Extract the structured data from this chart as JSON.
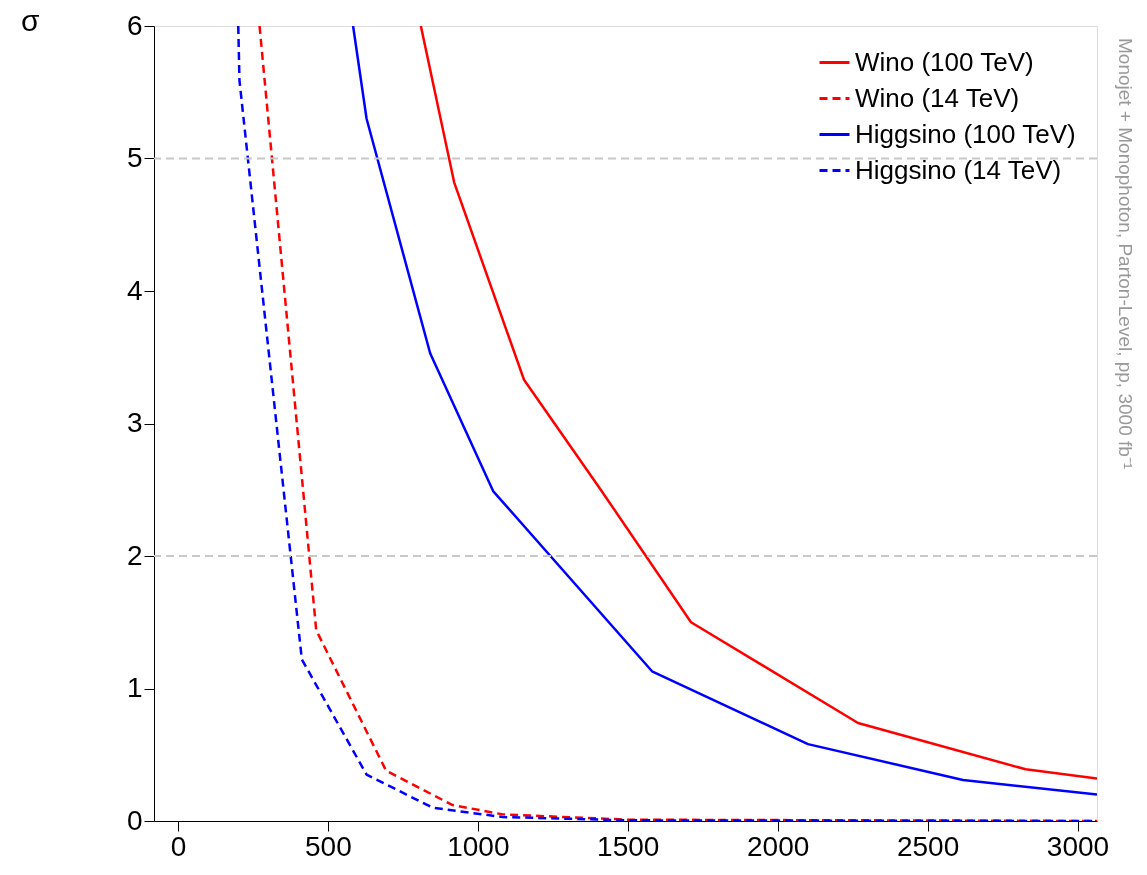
{
  "chart_data": {
    "type": "line",
    "ylabel": "σ",
    "series": [
      {
        "name": "Wino (100 TeV)",
        "color": "#ff0000",
        "line_style": "solid",
        "x": [
          810,
          921,
          1154,
          1407,
          1711,
          2268,
          2827,
          3065
        ],
        "values": [
          6,
          4.82,
          3.33,
          2.51,
          1.5,
          0.74,
          0.39,
          0.32
        ]
      },
      {
        "name": "Wino (14 TeV)",
        "color": "#ff0000",
        "line_style": "dashed",
        "x": [
          272,
          461,
          694,
          916,
          1083,
          1500,
          3065
        ],
        "values": [
          6,
          1.44,
          0.38,
          0.12,
          0.05,
          0.01,
          0
        ]
      },
      {
        "name": "Higgsino (100 TeV)",
        "color": "#0000ff",
        "line_style": "solid",
        "x": [
          584,
          629,
          841,
          1051,
          1581,
          2101,
          2618,
          3065
        ],
        "values": [
          6,
          5.3,
          3.53,
          2.49,
          1.13,
          0.58,
          0.31,
          0.2
        ]
      },
      {
        "name": "Higgsino (14 TeV)",
        "color": "#0000ff",
        "line_style": "dashed",
        "x": [
          201,
          205,
          413,
          629,
          850,
          1083,
          1500,
          3065
        ],
        "values": [
          6,
          5.59,
          1.22,
          0.35,
          0.1,
          0.03,
          0.005,
          0
        ]
      }
    ],
    "xlim": [
      -80,
      3065
    ],
    "ylim": [
      0,
      6
    ],
    "xticks": [
      0,
      500,
      1000,
      1500,
      2000,
      2500,
      3000
    ],
    "yticks": [
      0,
      1,
      2,
      3,
      4,
      5,
      6
    ],
    "ref_lines": [
      {
        "axis": "y",
        "value": 2,
        "color": "#c8c8c8",
        "line_style": "dashed"
      },
      {
        "axis": "y",
        "value": 5,
        "color": "#c8c8c8",
        "line_style": "dashed"
      }
    ],
    "annotations": [
      "Monojet + Monophoton, Parton-Level, pp, 3000 fb⁻¹"
    ],
    "legend": "top right",
    "grid": false,
    "marker": "none"
  }
}
